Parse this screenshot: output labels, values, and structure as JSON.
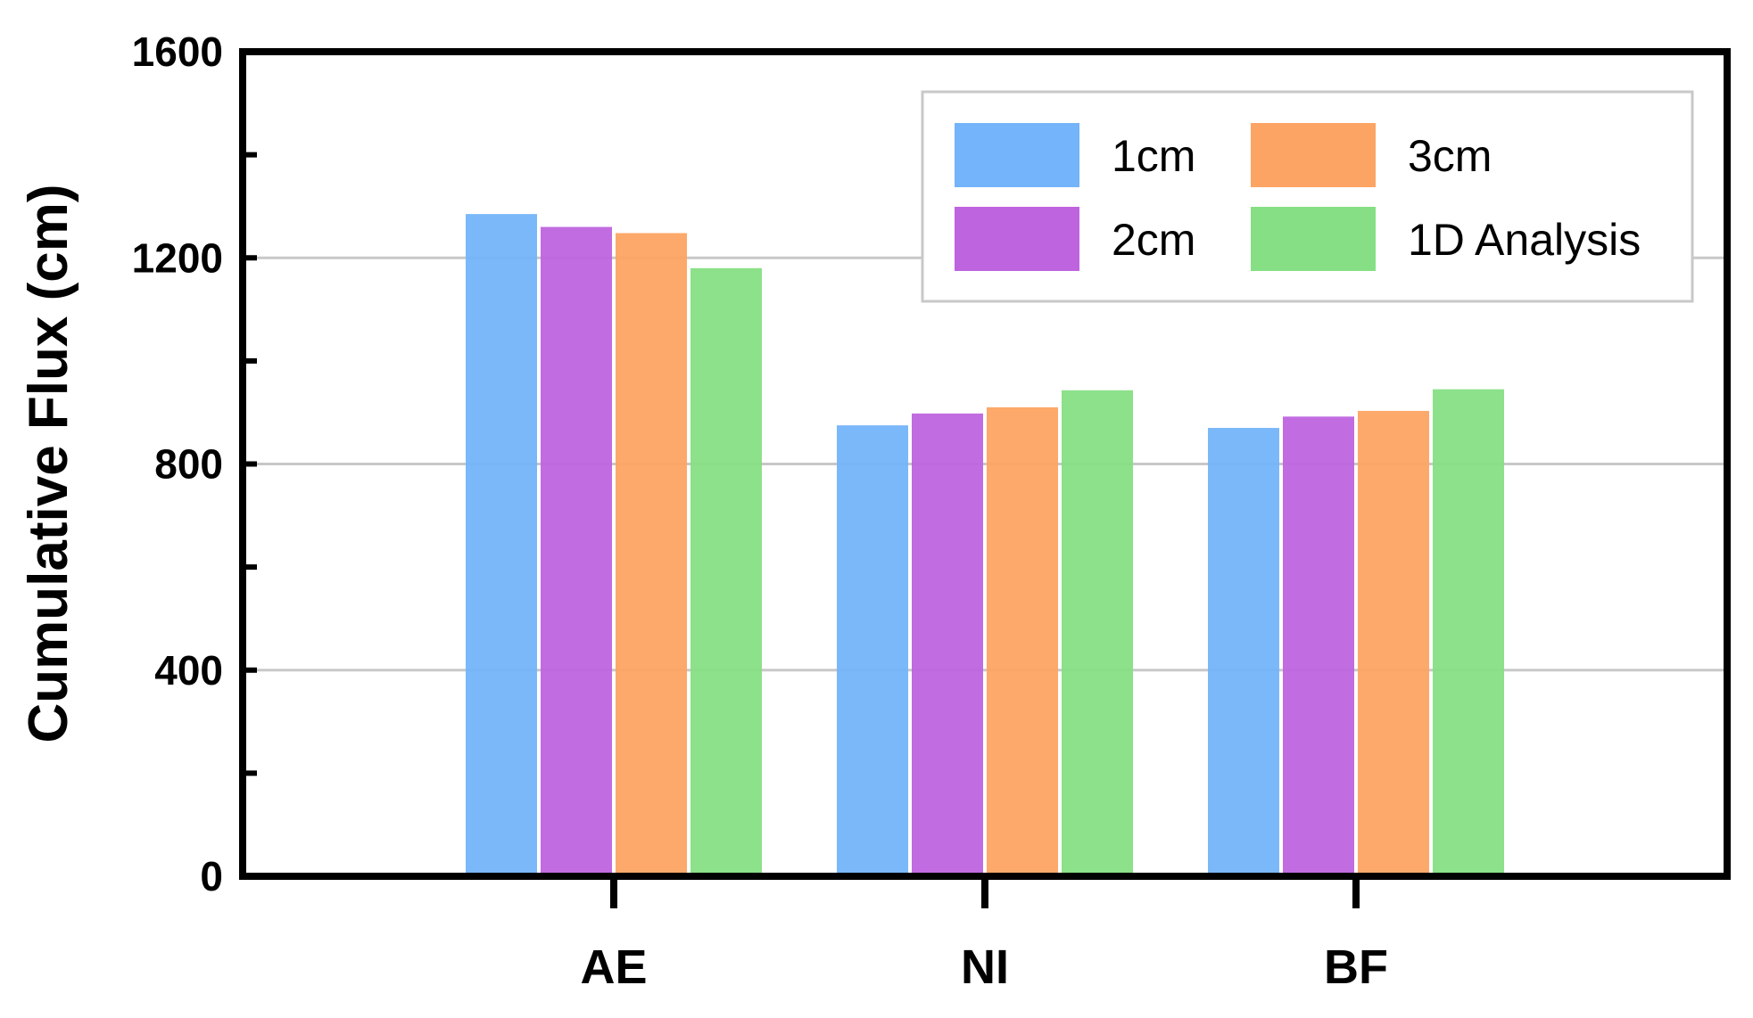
{
  "chart_data": {
    "type": "bar",
    "title": "",
    "xlabel": "",
    "ylabel": "Cumulative Flux (cm)",
    "categories": [
      "AE",
      "NI",
      "BF"
    ],
    "ylim": [
      0,
      1600
    ],
    "yticks": [
      0,
      400,
      800,
      1200,
      1600
    ],
    "grid": true,
    "legend_position": "top-right",
    "series": [
      {
        "name": "1cm",
        "color": "#74b4fa",
        "values": [
          1285,
          875,
          870
        ]
      },
      {
        "name": "2cm",
        "color": "#bf64df",
        "values": [
          1260,
          898,
          892
        ]
      },
      {
        "name": "3cm",
        "color": "#fca463",
        "values": [
          1248,
          910,
          903
        ]
      },
      {
        "name": "1D Analysis",
        "color": "#86df84",
        "values": [
          1180,
          943,
          945
        ]
      }
    ]
  }
}
